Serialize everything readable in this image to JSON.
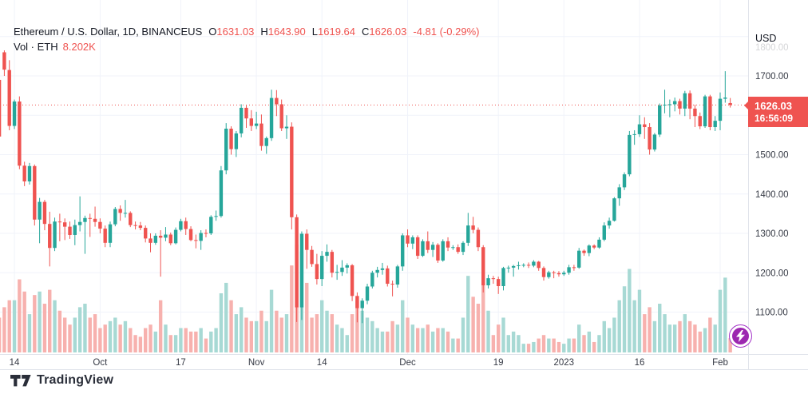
{
  "header": {
    "symbol_title": "Ethereum / U.S. Dollar, 1D, BINANCEUS",
    "ohlc": [
      {
        "label": "O",
        "value": "1631.03"
      },
      {
        "label": "H",
        "value": "1643.90"
      },
      {
        "label": "L",
        "value": "1619.64"
      },
      {
        "label": "C",
        "value": "1626.03"
      }
    ],
    "change": "-4.81 (-0.29%)",
    "vol_label": "Vol · ETH",
    "vol_value": "8.202K"
  },
  "price_axis": {
    "currency": "USD",
    "faded_top_label": "1800.00",
    "grid_values": [
      1800,
      1700,
      1600,
      1500,
      1400,
      1300,
      1200,
      1100
    ],
    "ticks": [
      {
        "value": 1700,
        "label": "1700.00"
      },
      {
        "value": 1600,
        "label": "1600.00"
      },
      {
        "value": 1500,
        "label": "1500.00"
      },
      {
        "value": 1400,
        "label": "1400.00"
      },
      {
        "value": 1300,
        "label": "1300.00"
      },
      {
        "value": 1200,
        "label": "1200.00"
      },
      {
        "value": 1100,
        "label": "1100.00"
      }
    ],
    "price_badge": {
      "price": "1626.03",
      "countdown": "16:56:09"
    }
  },
  "time_axis": {
    "ticks": [
      {
        "label": "14",
        "index": 3
      },
      {
        "label": "Oct",
        "index": 20
      },
      {
        "label": "17",
        "index": 36
      },
      {
        "label": "Nov",
        "index": 51
      },
      {
        "label": "14",
        "index": 64
      },
      {
        "label": "Dec",
        "index": 81
      },
      {
        "label": "19",
        "index": 99
      },
      {
        "label": "2023",
        "index": 112
      },
      {
        "label": "16",
        "index": 127
      },
      {
        "label": "Feb",
        "index": 143
      }
    ]
  },
  "footer": {
    "brand": "TradingView"
  },
  "colors": {
    "up": "#26a69a",
    "down": "#ef5350",
    "vol_up": "#a7d9d4",
    "vol_down": "#f7b1ae",
    "grid": "#f0f3fa",
    "axis_border": "#e0e3eb",
    "axis_text": "#363a45",
    "price_line": "#ef5350",
    "badge_bg": "#ef5350",
    "lightning": "#9c27b0"
  },
  "chart_data": {
    "type": "candlestick",
    "title": "Ethereum / U.S. Dollar",
    "symbol": "ETHUSD",
    "exchange": "BINANCEUS",
    "interval": "1D",
    "legend_last_bar": {
      "open": 1631.03,
      "high": 1643.9,
      "low": 1619.64,
      "close": 1626.03,
      "change": -4.81,
      "change_pct": -0.29,
      "volume": "8.202K"
    },
    "current_price": 1626.03,
    "y_axis": {
      "currency": "USD",
      "visible_range": [
        1050,
        1780
      ],
      "ticks": [
        1700,
        1600,
        1500,
        1400,
        1300,
        1200,
        1100
      ]
    },
    "x_axis_tick_labels": [
      "14",
      "Oct",
      "17",
      "Nov",
      "14",
      "Dec",
      "19",
      "2023",
      "16",
      "Feb"
    ],
    "grid": true,
    "volume_overlay": true,
    "volume_scale_max_k": 62,
    "columns": [
      "date",
      "open",
      "high",
      "low",
      "close",
      "volume_k"
    ],
    "candles": [
      [
        "2022-09-11",
        1690,
        1698,
        1535,
        1546,
        20
      ],
      [
        "2022-09-12",
        1760,
        1765,
        1700,
        1716,
        26
      ],
      [
        "2022-09-13",
        1715,
        1740,
        1562,
        1573,
        30
      ],
      [
        "2022-09-14",
        1573,
        1640,
        1565,
        1635,
        30
      ],
      [
        "2022-09-15",
        1635,
        1648,
        1463,
        1472,
        42
      ],
      [
        "2022-09-16",
        1472,
        1482,
        1420,
        1432,
        35
      ],
      [
        "2022-09-17",
        1432,
        1479,
        1424,
        1471,
        22
      ],
      [
        "2022-09-18",
        1471,
        1475,
        1320,
        1335,
        33
      ],
      [
        "2022-09-19",
        1335,
        1390,
        1275,
        1380,
        35
      ],
      [
        "2022-09-20",
        1380,
        1385,
        1308,
        1324,
        28
      ],
      [
        "2022-09-21",
        1324,
        1355,
        1216,
        1263,
        36
      ],
      [
        "2022-09-22",
        1263,
        1340,
        1255,
        1330,
        30
      ],
      [
        "2022-09-23",
        1330,
        1350,
        1280,
        1328,
        24
      ],
      [
        "2022-09-24",
        1328,
        1338,
        1283,
        1317,
        20
      ],
      [
        "2022-09-25",
        1317,
        1330,
        1286,
        1296,
        16
      ],
      [
        "2022-09-26",
        1296,
        1335,
        1270,
        1321,
        20
      ],
      [
        "2022-09-27",
        1321,
        1394,
        1305,
        1329,
        26
      ],
      [
        "2022-09-28",
        1329,
        1345,
        1248,
        1339,
        28
      ],
      [
        "2022-09-29",
        1339,
        1350,
        1291,
        1337,
        20
      ],
      [
        "2022-09-30",
        1337,
        1368,
        1317,
        1329,
        22
      ],
      [
        "2022-10-01",
        1329,
        1338,
        1300,
        1312,
        14
      ],
      [
        "2022-10-02",
        1312,
        1320,
        1265,
        1276,
        16
      ],
      [
        "2022-10-03",
        1276,
        1330,
        1265,
        1323,
        18
      ],
      [
        "2022-10-04",
        1323,
        1367,
        1318,
        1362,
        20
      ],
      [
        "2022-10-05",
        1362,
        1371,
        1332,
        1352,
        16
      ],
      [
        "2022-10-06",
        1352,
        1385,
        1340,
        1352,
        18
      ],
      [
        "2022-10-07",
        1352,
        1356,
        1316,
        1321,
        14
      ],
      [
        "2022-10-08",
        1321,
        1330,
        1310,
        1320,
        10
      ],
      [
        "2022-10-09",
        1320,
        1329,
        1308,
        1314,
        9
      ],
      [
        "2022-10-10",
        1314,
        1320,
        1277,
        1287,
        14
      ],
      [
        "2022-10-11",
        1287,
        1300,
        1252,
        1276,
        16
      ],
      [
        "2022-10-12",
        1276,
        1300,
        1271,
        1294,
        12
      ],
      [
        "2022-10-13",
        1294,
        1308,
        1190,
        1289,
        30
      ],
      [
        "2022-10-14",
        1289,
        1316,
        1280,
        1297,
        16
      ],
      [
        "2022-10-15",
        1297,
        1302,
        1270,
        1275,
        10
      ],
      [
        "2022-10-16",
        1275,
        1315,
        1272,
        1309,
        10
      ],
      [
        "2022-10-17",
        1309,
        1337,
        1305,
        1331,
        14
      ],
      [
        "2022-10-18",
        1331,
        1340,
        1296,
        1311,
        14
      ],
      [
        "2022-10-19",
        1311,
        1318,
        1280,
        1283,
        12
      ],
      [
        "2022-10-20",
        1283,
        1297,
        1262,
        1281,
        12
      ],
      [
        "2022-10-21",
        1281,
        1308,
        1258,
        1301,
        14
      ],
      [
        "2022-10-22",
        1301,
        1310,
        1290,
        1300,
        8
      ],
      [
        "2022-10-23",
        1300,
        1346,
        1296,
        1342,
        12
      ],
      [
        "2022-10-24",
        1342,
        1358,
        1332,
        1344,
        14
      ],
      [
        "2022-10-25",
        1344,
        1471,
        1340,
        1460,
        34
      ],
      [
        "2022-10-26",
        1460,
        1580,
        1450,
        1566,
        40
      ],
      [
        "2022-10-27",
        1566,
        1572,
        1500,
        1514,
        30
      ],
      [
        "2022-10-28",
        1514,
        1560,
        1494,
        1554,
        22
      ],
      [
        "2022-10-29",
        1554,
        1628,
        1544,
        1619,
        26
      ],
      [
        "2022-10-30",
        1619,
        1625,
        1568,
        1592,
        20
      ],
      [
        "2022-10-31",
        1592,
        1613,
        1560,
        1573,
        18
      ],
      [
        "2022-11-01",
        1573,
        1609,
        1565,
        1579,
        18
      ],
      [
        "2022-11-02",
        1579,
        1602,
        1510,
        1522,
        24
      ],
      [
        "2022-11-03",
        1522,
        1546,
        1502,
        1542,
        18
      ],
      [
        "2022-11-04",
        1542,
        1665,
        1535,
        1644,
        36
      ],
      [
        "2022-11-05",
        1644,
        1664,
        1598,
        1628,
        24
      ],
      [
        "2022-11-06",
        1628,
        1640,
        1560,
        1567,
        20
      ],
      [
        "2022-11-07",
        1567,
        1600,
        1540,
        1571,
        22
      ],
      [
        "2022-11-08",
        1571,
        1582,
        1310,
        1341,
        50
      ],
      [
        "2022-11-09",
        1341,
        1348,
        1075,
        1112,
        62
      ],
      [
        "2022-11-10",
        1112,
        1305,
        1080,
        1299,
        58
      ],
      [
        "2022-11-11",
        1299,
        1310,
        1210,
        1258,
        40
      ],
      [
        "2022-11-12",
        1258,
        1268,
        1215,
        1222,
        20
      ],
      [
        "2022-11-13",
        1222,
        1248,
        1170,
        1184,
        22
      ],
      [
        "2022-11-14",
        1184,
        1255,
        1166,
        1243,
        30
      ],
      [
        "2022-11-15",
        1243,
        1272,
        1228,
        1253,
        24
      ],
      [
        "2022-11-16",
        1253,
        1258,
        1188,
        1200,
        22
      ],
      [
        "2022-11-17",
        1200,
        1220,
        1182,
        1202,
        16
      ],
      [
        "2022-11-18",
        1202,
        1232,
        1192,
        1213,
        14
      ],
      [
        "2022-11-19",
        1213,
        1224,
        1198,
        1219,
        10
      ],
      [
        "2022-11-20",
        1219,
        1222,
        1128,
        1141,
        22
      ],
      [
        "2022-11-21",
        1141,
        1150,
        1074,
        1110,
        30
      ],
      [
        "2022-11-22",
        1110,
        1135,
        1072,
        1129,
        24
      ],
      [
        "2022-11-23",
        1129,
        1172,
        1120,
        1165,
        20
      ],
      [
        "2022-11-24",
        1165,
        1205,
        1160,
        1200,
        18
      ],
      [
        "2022-11-25",
        1200,
        1215,
        1188,
        1207,
        14
      ],
      [
        "2022-11-26",
        1207,
        1225,
        1195,
        1211,
        12
      ],
      [
        "2022-11-27",
        1211,
        1218,
        1165,
        1172,
        12
      ],
      [
        "2022-11-28",
        1172,
        1180,
        1140,
        1170,
        18
      ],
      [
        "2022-11-29",
        1170,
        1220,
        1162,
        1216,
        16
      ],
      [
        "2022-11-30",
        1216,
        1300,
        1205,
        1295,
        30
      ],
      [
        "2022-12-01",
        1295,
        1310,
        1265,
        1274,
        20
      ],
      [
        "2022-12-02",
        1274,
        1295,
        1260,
        1290,
        16
      ],
      [
        "2022-12-03",
        1290,
        1295,
        1235,
        1243,
        14
      ],
      [
        "2022-12-04",
        1243,
        1285,
        1240,
        1280,
        14
      ],
      [
        "2022-12-05",
        1280,
        1305,
        1250,
        1258,
        16
      ],
      [
        "2022-12-06",
        1258,
        1278,
        1240,
        1271,
        12
      ],
      [
        "2022-12-07",
        1271,
        1275,
        1225,
        1231,
        14
      ],
      [
        "2022-12-08",
        1231,
        1285,
        1228,
        1280,
        14
      ],
      [
        "2022-12-09",
        1280,
        1290,
        1255,
        1264,
        12
      ],
      [
        "2022-12-10",
        1264,
        1270,
        1258,
        1265,
        8
      ],
      [
        "2022-12-11",
        1265,
        1272,
        1248,
        1253,
        8
      ],
      [
        "2022-12-12",
        1253,
        1280,
        1245,
        1276,
        20
      ],
      [
        "2022-12-13",
        1276,
        1352,
        1268,
        1320,
        44
      ],
      [
        "2022-12-14",
        1320,
        1342,
        1300,
        1309,
        32
      ],
      [
        "2022-12-15",
        1309,
        1315,
        1255,
        1265,
        28
      ],
      [
        "2022-12-16",
        1265,
        1270,
        1150,
        1168,
        40
      ],
      [
        "2022-12-17",
        1168,
        1195,
        1160,
        1186,
        24
      ],
      [
        "2022-12-18",
        1186,
        1192,
        1172,
        1184,
        10
      ],
      [
        "2022-12-19",
        1184,
        1190,
        1146,
        1166,
        16
      ],
      [
        "2022-12-20",
        1166,
        1215,
        1155,
        1212,
        20
      ],
      [
        "2022-12-21",
        1212,
        1218,
        1200,
        1213,
        10
      ],
      [
        "2022-12-22",
        1213,
        1220,
        1190,
        1217,
        12
      ],
      [
        "2022-12-23",
        1217,
        1228,
        1208,
        1219,
        10
      ],
      [
        "2022-12-24",
        1219,
        1224,
        1214,
        1220,
        5
      ],
      [
        "2022-12-25",
        1220,
        1226,
        1212,
        1218,
        5
      ],
      [
        "2022-12-26",
        1218,
        1232,
        1214,
        1228,
        6
      ],
      [
        "2022-12-27",
        1228,
        1230,
        1205,
        1212,
        8
      ],
      [
        "2022-12-28",
        1212,
        1216,
        1180,
        1189,
        10
      ],
      [
        "2022-12-29",
        1189,
        1205,
        1185,
        1201,
        8
      ],
      [
        "2022-12-30",
        1201,
        1205,
        1186,
        1199,
        8
      ],
      [
        "2022-12-31",
        1199,
        1204,
        1190,
        1196,
        6
      ],
      [
        "2023-01-01",
        1196,
        1205,
        1192,
        1200,
        5
      ],
      [
        "2023-01-02",
        1200,
        1220,
        1195,
        1214,
        8
      ],
      [
        "2023-01-03",
        1214,
        1220,
        1205,
        1213,
        8
      ],
      [
        "2023-01-04",
        1213,
        1263,
        1210,
        1256,
        16
      ],
      [
        "2023-01-05",
        1256,
        1259,
        1243,
        1250,
        10
      ],
      [
        "2023-01-06",
        1250,
        1272,
        1242,
        1269,
        12
      ],
      [
        "2023-01-07",
        1269,
        1272,
        1260,
        1264,
        6
      ],
      [
        "2023-01-08",
        1264,
        1290,
        1261,
        1284,
        10
      ],
      [
        "2023-01-09",
        1284,
        1328,
        1280,
        1320,
        18
      ],
      [
        "2023-01-10",
        1320,
        1340,
        1312,
        1332,
        14
      ],
      [
        "2023-01-11",
        1332,
        1392,
        1330,
        1389,
        20
      ],
      [
        "2023-01-12",
        1389,
        1425,
        1370,
        1417,
        30
      ],
      [
        "2023-01-13",
        1417,
        1455,
        1410,
        1450,
        38
      ],
      [
        "2023-01-14",
        1450,
        1560,
        1445,
        1550,
        48
      ],
      [
        "2023-01-15",
        1550,
        1562,
        1525,
        1552,
        30
      ],
      [
        "2023-01-16",
        1552,
        1600,
        1545,
        1577,
        36
      ],
      [
        "2023-01-17",
        1577,
        1595,
        1540,
        1570,
        22
      ],
      [
        "2023-01-18",
        1570,
        1580,
        1500,
        1513,
        26
      ],
      [
        "2023-01-19",
        1513,
        1555,
        1508,
        1551,
        18
      ],
      [
        "2023-01-20",
        1551,
        1630,
        1545,
        1625,
        28
      ],
      [
        "2023-01-21",
        1625,
        1665,
        1605,
        1627,
        22
      ],
      [
        "2023-01-22",
        1627,
        1640,
        1595,
        1628,
        16
      ],
      [
        "2023-01-23",
        1628,
        1645,
        1610,
        1636,
        16
      ],
      [
        "2023-01-24",
        1636,
        1642,
        1602,
        1617,
        18
      ],
      [
        "2023-01-25",
        1617,
        1662,
        1598,
        1656,
        22
      ],
      [
        "2023-01-26",
        1656,
        1663,
        1590,
        1617,
        18
      ],
      [
        "2023-01-27",
        1617,
        1627,
        1570,
        1598,
        16
      ],
      [
        "2023-01-28",
        1598,
        1607,
        1565,
        1572,
        12
      ],
      [
        "2023-01-29",
        1572,
        1652,
        1568,
        1648,
        14
      ],
      [
        "2023-01-30",
        1648,
        1652,
        1562,
        1570,
        20
      ],
      [
        "2023-01-31",
        1570,
        1598,
        1560,
        1586,
        16
      ],
      [
        "2023-02-01",
        1586,
        1658,
        1562,
        1642,
        36
      ],
      [
        "2023-02-02",
        1642,
        1712,
        1632,
        1645,
        43
      ],
      [
        "2023-02-03",
        1631.03,
        1643.9,
        1619.64,
        1626.03,
        8.202
      ]
    ]
  }
}
